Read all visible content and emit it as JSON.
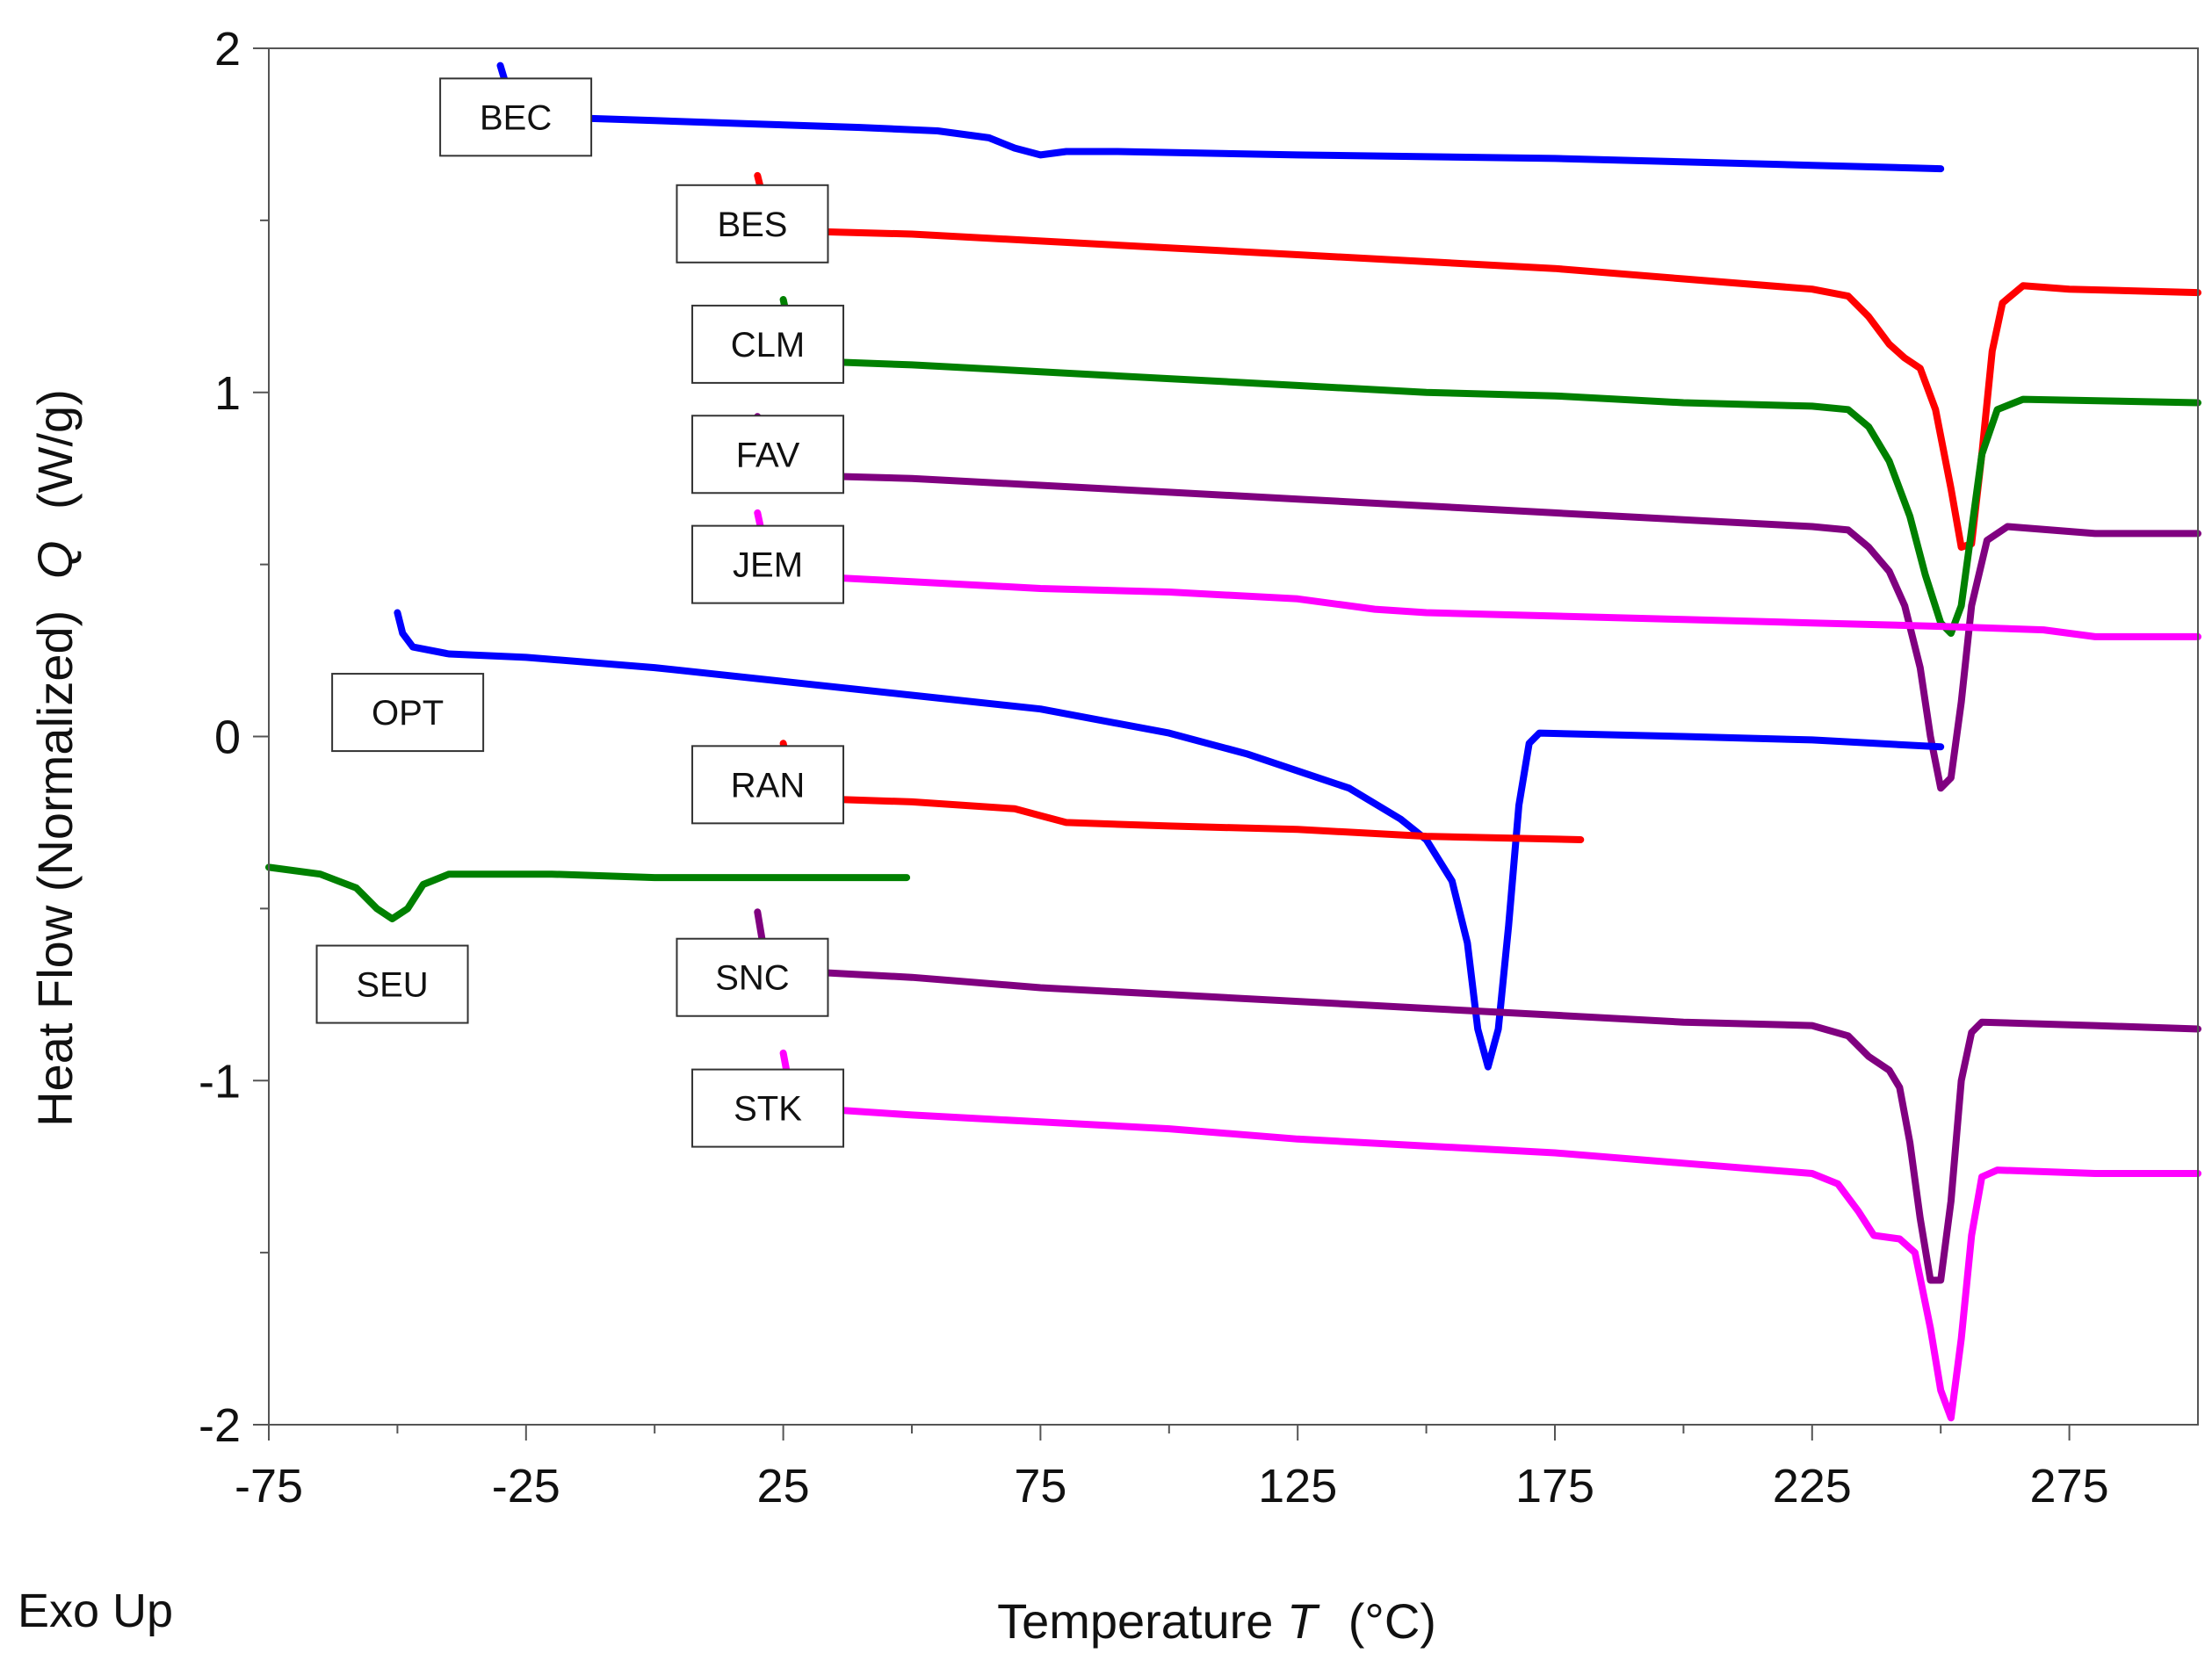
{
  "chart_data": {
    "type": "line",
    "title": "",
    "xlabel_prefix": "Temperature ",
    "xlabel_symbol": "T",
    "xlabel_suffix": "(°C)",
    "ylabel_prefix": "Heat Flow (Normalized)",
    "ylabel_symbol": "Q",
    "ylabel_suffix": "(W/g)",
    "exo_note": "Exo Up",
    "xlim": [
      -75,
      300
    ],
    "ylim": [
      -2,
      2
    ],
    "xticks": [
      -75,
      -25,
      25,
      75,
      125,
      175,
      225,
      275
    ],
    "yticks": [
      2,
      1,
      0,
      -1,
      -2
    ],
    "grid": false,
    "series": [
      {
        "name": "BEC",
        "color": "#0000ff",
        "label_at": [
          -27,
          1.8
        ],
        "points": [
          [
            -30,
            1.95
          ],
          [
            -29,
            1.9
          ],
          [
            -28,
            1.83
          ],
          [
            -26,
            1.81
          ],
          [
            -20,
            1.8
          ],
          [
            0,
            1.79
          ],
          [
            20,
            1.78
          ],
          [
            40,
            1.77
          ],
          [
            55,
            1.76
          ],
          [
            65,
            1.74
          ],
          [
            70,
            1.71
          ],
          [
            75,
            1.69
          ],
          [
            80,
            1.7
          ],
          [
            90,
            1.7
          ],
          [
            125,
            1.69
          ],
          [
            175,
            1.68
          ],
          [
            225,
            1.66
          ],
          [
            250,
            1.65
          ]
        ]
      },
      {
        "name": "BES",
        "color": "#ff0000",
        "label_at": [
          19,
          1.49
        ],
        "points": [
          [
            20,
            1.63
          ],
          [
            21,
            1.57
          ],
          [
            22,
            1.5
          ],
          [
            25,
            1.47
          ],
          [
            50,
            1.46
          ],
          [
            75,
            1.44
          ],
          [
            100,
            1.42
          ],
          [
            125,
            1.4
          ],
          [
            150,
            1.38
          ],
          [
            175,
            1.36
          ],
          [
            200,
            1.33
          ],
          [
            225,
            1.3
          ],
          [
            232,
            1.28
          ],
          [
            236,
            1.22
          ],
          [
            240,
            1.14
          ],
          [
            243,
            1.1
          ],
          [
            246,
            1.07
          ],
          [
            249,
            0.95
          ],
          [
            252,
            0.72
          ],
          [
            254,
            0.55
          ],
          [
            256,
            0.56
          ],
          [
            258,
            0.82
          ],
          [
            260,
            1.12
          ],
          [
            262,
            1.26
          ],
          [
            266,
            1.31
          ],
          [
            275,
            1.3
          ],
          [
            300,
            1.29
          ]
        ]
      },
      {
        "name": "CLM",
        "color": "#008000",
        "label_at": [
          22,
          1.14
        ],
        "points": [
          [
            25,
            1.27
          ],
          [
            26,
            1.2
          ],
          [
            28,
            1.12
          ],
          [
            32,
            1.09
          ],
          [
            50,
            1.08
          ],
          [
            75,
            1.06
          ],
          [
            100,
            1.04
          ],
          [
            125,
            1.02
          ],
          [
            150,
            1.0
          ],
          [
            175,
            0.99
          ],
          [
            200,
            0.97
          ],
          [
            225,
            0.96
          ],
          [
            232,
            0.95
          ],
          [
            236,
            0.9
          ],
          [
            240,
            0.8
          ],
          [
            244,
            0.64
          ],
          [
            247,
            0.47
          ],
          [
            250,
            0.33
          ],
          [
            252,
            0.3
          ],
          [
            254,
            0.38
          ],
          [
            256,
            0.6
          ],
          [
            258,
            0.82
          ],
          [
            261,
            0.95
          ],
          [
            266,
            0.98
          ],
          [
            300,
            0.97
          ]
        ]
      },
      {
        "name": "FAV",
        "color": "#800080",
        "label_at": [
          22,
          0.82
        ],
        "points": [
          [
            20,
            0.93
          ],
          [
            21,
            0.86
          ],
          [
            22,
            0.79
          ],
          [
            25,
            0.76
          ],
          [
            50,
            0.75
          ],
          [
            75,
            0.73
          ],
          [
            100,
            0.71
          ],
          [
            125,
            0.69
          ],
          [
            150,
            0.67
          ],
          [
            175,
            0.65
          ],
          [
            200,
            0.63
          ],
          [
            225,
            0.61
          ],
          [
            232,
            0.6
          ],
          [
            236,
            0.55
          ],
          [
            240,
            0.48
          ],
          [
            243,
            0.38
          ],
          [
            246,
            0.2
          ],
          [
            248,
            0.0
          ],
          [
            250,
            -0.15
          ],
          [
            252,
            -0.12
          ],
          [
            254,
            0.1
          ],
          [
            256,
            0.38
          ],
          [
            259,
            0.57
          ],
          [
            263,
            0.61
          ],
          [
            280,
            0.59
          ],
          [
            300,
            0.59
          ]
        ]
      },
      {
        "name": "JEM",
        "color": "#ff00ff",
        "label_at": [
          22,
          0.5
        ],
        "points": [
          [
            20,
            0.65
          ],
          [
            21,
            0.58
          ],
          [
            22,
            0.5
          ],
          [
            24,
            0.47
          ],
          [
            50,
            0.45
          ],
          [
            75,
            0.43
          ],
          [
            100,
            0.42
          ],
          [
            125,
            0.4
          ],
          [
            140,
            0.37
          ],
          [
            150,
            0.36
          ],
          [
            175,
            0.35
          ],
          [
            200,
            0.34
          ],
          [
            225,
            0.33
          ],
          [
            250,
            0.32
          ],
          [
            270,
            0.31
          ],
          [
            280,
            0.29
          ],
          [
            300,
            0.29
          ]
        ]
      },
      {
        "name": "OPT",
        "color": "#0000ff",
        "label_at": [
          -48,
          0.07
        ],
        "points": [
          [
            -50,
            0.36
          ],
          [
            -49,
            0.3
          ],
          [
            -47,
            0.26
          ],
          [
            -40,
            0.24
          ],
          [
            -25,
            0.23
          ],
          [
            0,
            0.2
          ],
          [
            25,
            0.16
          ],
          [
            50,
            0.12
          ],
          [
            75,
            0.08
          ],
          [
            100,
            0.01
          ],
          [
            115,
            -0.05
          ],
          [
            125,
            -0.1
          ],
          [
            135,
            -0.15
          ],
          [
            145,
            -0.24
          ],
          [
            150,
            -0.3
          ],
          [
            155,
            -0.42
          ],
          [
            158,
            -0.6
          ],
          [
            160,
            -0.85
          ],
          [
            162,
            -0.96
          ],
          [
            164,
            -0.85
          ],
          [
            166,
            -0.55
          ],
          [
            168,
            -0.2
          ],
          [
            170,
            -0.02
          ],
          [
            172,
            0.01
          ],
          [
            200,
            0.0
          ],
          [
            225,
            -0.01
          ],
          [
            250,
            -0.03
          ]
        ]
      },
      {
        "name": "RAN",
        "color": "#ff0000",
        "label_at": [
          22,
          -0.14
        ],
        "points": [
          [
            25,
            -0.02
          ],
          [
            26,
            -0.1
          ],
          [
            27,
            -0.16
          ],
          [
            30,
            -0.18
          ],
          [
            50,
            -0.19
          ],
          [
            70,
            -0.21
          ],
          [
            75,
            -0.23
          ],
          [
            80,
            -0.25
          ],
          [
            100,
            -0.26
          ],
          [
            125,
            -0.27
          ],
          [
            150,
            -0.29
          ],
          [
            180,
            -0.3
          ]
        ]
      },
      {
        "name": "SEU",
        "color": "#008000",
        "label_at": [
          -51,
          -0.72
        ],
        "points": [
          [
            -75,
            -0.38
          ],
          [
            -65,
            -0.4
          ],
          [
            -58,
            -0.44
          ],
          [
            -54,
            -0.5
          ],
          [
            -51,
            -0.53
          ],
          [
            -48,
            -0.5
          ],
          [
            -45,
            -0.43
          ],
          [
            -40,
            -0.4
          ],
          [
            -20,
            -0.4
          ],
          [
            0,
            -0.41
          ],
          [
            25,
            -0.41
          ],
          [
            49,
            -0.41
          ]
        ]
      },
      {
        "name": "SNC",
        "color": "#800080",
        "label_at": [
          19,
          -0.7
        ],
        "points": [
          [
            20,
            -0.51
          ],
          [
            21,
            -0.6
          ],
          [
            22,
            -0.66
          ],
          [
            25,
            -0.68
          ],
          [
            50,
            -0.7
          ],
          [
            75,
            -0.73
          ],
          [
            100,
            -0.75
          ],
          [
            125,
            -0.77
          ],
          [
            150,
            -0.79
          ],
          [
            175,
            -0.81
          ],
          [
            200,
            -0.83
          ],
          [
            225,
            -0.84
          ],
          [
            232,
            -0.87
          ],
          [
            236,
            -0.93
          ],
          [
            240,
            -0.97
          ],
          [
            242,
            -1.02
          ],
          [
            244,
            -1.18
          ],
          [
            246,
            -1.4
          ],
          [
            248,
            -1.58
          ],
          [
            250,
            -1.58
          ],
          [
            252,
            -1.35
          ],
          [
            254,
            -1.0
          ],
          [
            256,
            -0.86
          ],
          [
            258,
            -0.83
          ],
          [
            280,
            -0.84
          ],
          [
            300,
            -0.85
          ]
        ]
      },
      {
        "name": "STK",
        "color": "#ff00ff",
        "label_at": [
          22,
          -1.08
        ],
        "points": [
          [
            25,
            -0.92
          ],
          [
            26,
            -1.0
          ],
          [
            27,
            -1.06
          ],
          [
            30,
            -1.08
          ],
          [
            50,
            -1.1
          ],
          [
            75,
            -1.12
          ],
          [
            100,
            -1.14
          ],
          [
            125,
            -1.17
          ],
          [
            150,
            -1.19
          ],
          [
            175,
            -1.21
          ],
          [
            200,
            -1.24
          ],
          [
            225,
            -1.27
          ],
          [
            230,
            -1.3
          ],
          [
            234,
            -1.38
          ],
          [
            237,
            -1.45
          ],
          [
            242,
            -1.46
          ],
          [
            245,
            -1.5
          ],
          [
            248,
            -1.72
          ],
          [
            250,
            -1.9
          ],
          [
            252,
            -1.98
          ],
          [
            254,
            -1.75
          ],
          [
            256,
            -1.45
          ],
          [
            258,
            -1.28
          ],
          [
            261,
            -1.26
          ],
          [
            280,
            -1.27
          ],
          [
            300,
            -1.27
          ]
        ]
      }
    ]
  }
}
